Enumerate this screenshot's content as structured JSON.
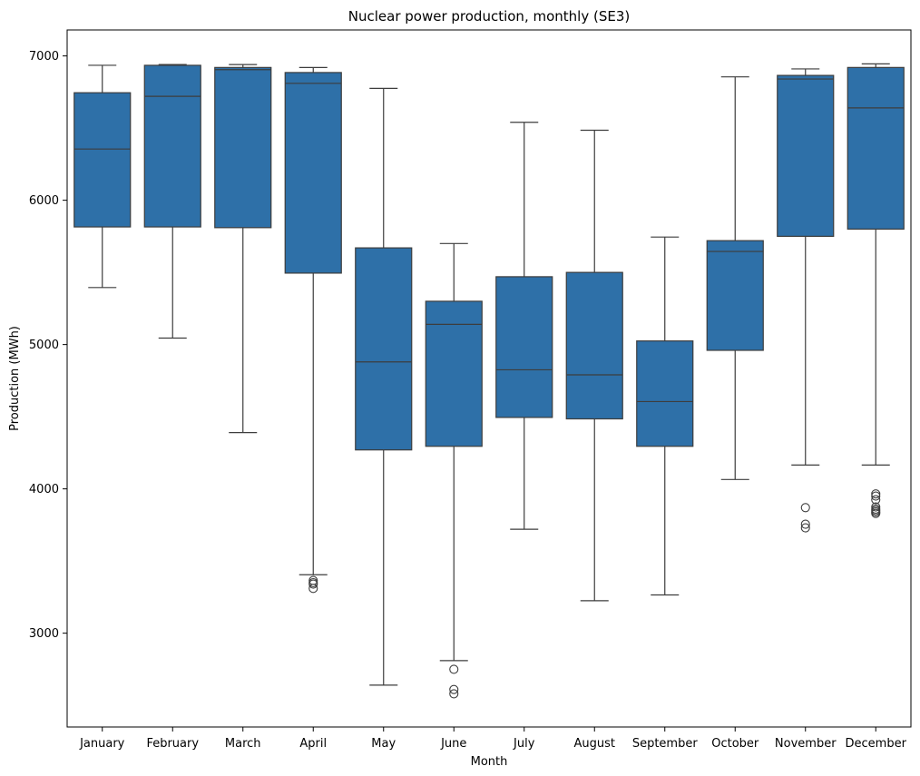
{
  "chart_data": {
    "type": "box",
    "title": "Nuclear power production, monthly (SE3)",
    "xlabel": "Month",
    "ylabel": "Production (MWh)",
    "ylim": [
      2350,
      7180
    ],
    "yticks": [
      3000,
      4000,
      5000,
      6000,
      7000
    ],
    "grid": false,
    "box_color": "#2e70a8",
    "line_color": "#3d3d3d",
    "categories": [
      "January",
      "February",
      "March",
      "April",
      "May",
      "June",
      "July",
      "August",
      "September",
      "October",
      "November",
      "December"
    ],
    "boxes": [
      {
        "whislo": 5395,
        "q1": 5815,
        "med": 6355,
        "q3": 6745,
        "whishi": 6935,
        "fliers": []
      },
      {
        "whislo": 5045,
        "q1": 5815,
        "med": 6720,
        "q3": 6935,
        "whishi": 6940,
        "fliers": []
      },
      {
        "whislo": 4390,
        "q1": 5810,
        "med": 6905,
        "q3": 6920,
        "whishi": 6940,
        "fliers": []
      },
      {
        "whislo": 3405,
        "q1": 5495,
        "med": 6810,
        "q3": 6885,
        "whishi": 6920,
        "fliers": [
          3365,
          3350,
          3340,
          3310
        ]
      },
      {
        "whislo": 2640,
        "q1": 4270,
        "med": 4880,
        "q3": 5670,
        "whishi": 6775,
        "fliers": []
      },
      {
        "whislo": 2810,
        "q1": 4295,
        "med": 5140,
        "q3": 5300,
        "whishi": 5700,
        "fliers": [
          2750,
          2610,
          2580
        ]
      },
      {
        "whislo": 3720,
        "q1": 4495,
        "med": 4825,
        "q3": 5470,
        "whishi": 6540,
        "fliers": []
      },
      {
        "whislo": 3225,
        "q1": 4485,
        "med": 4790,
        "q3": 5500,
        "whishi": 6485,
        "fliers": []
      },
      {
        "whislo": 3265,
        "q1": 4295,
        "med": 4605,
        "q3": 5025,
        "whishi": 5745,
        "fliers": []
      },
      {
        "whislo": 4065,
        "q1": 4960,
        "med": 5645,
        "q3": 5720,
        "whishi": 6855,
        "fliers": []
      },
      {
        "whislo": 4165,
        "q1": 5750,
        "med": 6840,
        "q3": 6865,
        "whishi": 6910,
        "fliers": [
          3870,
          3755,
          3730
        ]
      },
      {
        "whislo": 4165,
        "q1": 5800,
        "med": 6640,
        "q3": 6920,
        "whishi": 6945,
        "fliers": [
          3965,
          3950,
          3925,
          3875,
          3860,
          3850,
          3840,
          3830
        ]
      }
    ]
  }
}
